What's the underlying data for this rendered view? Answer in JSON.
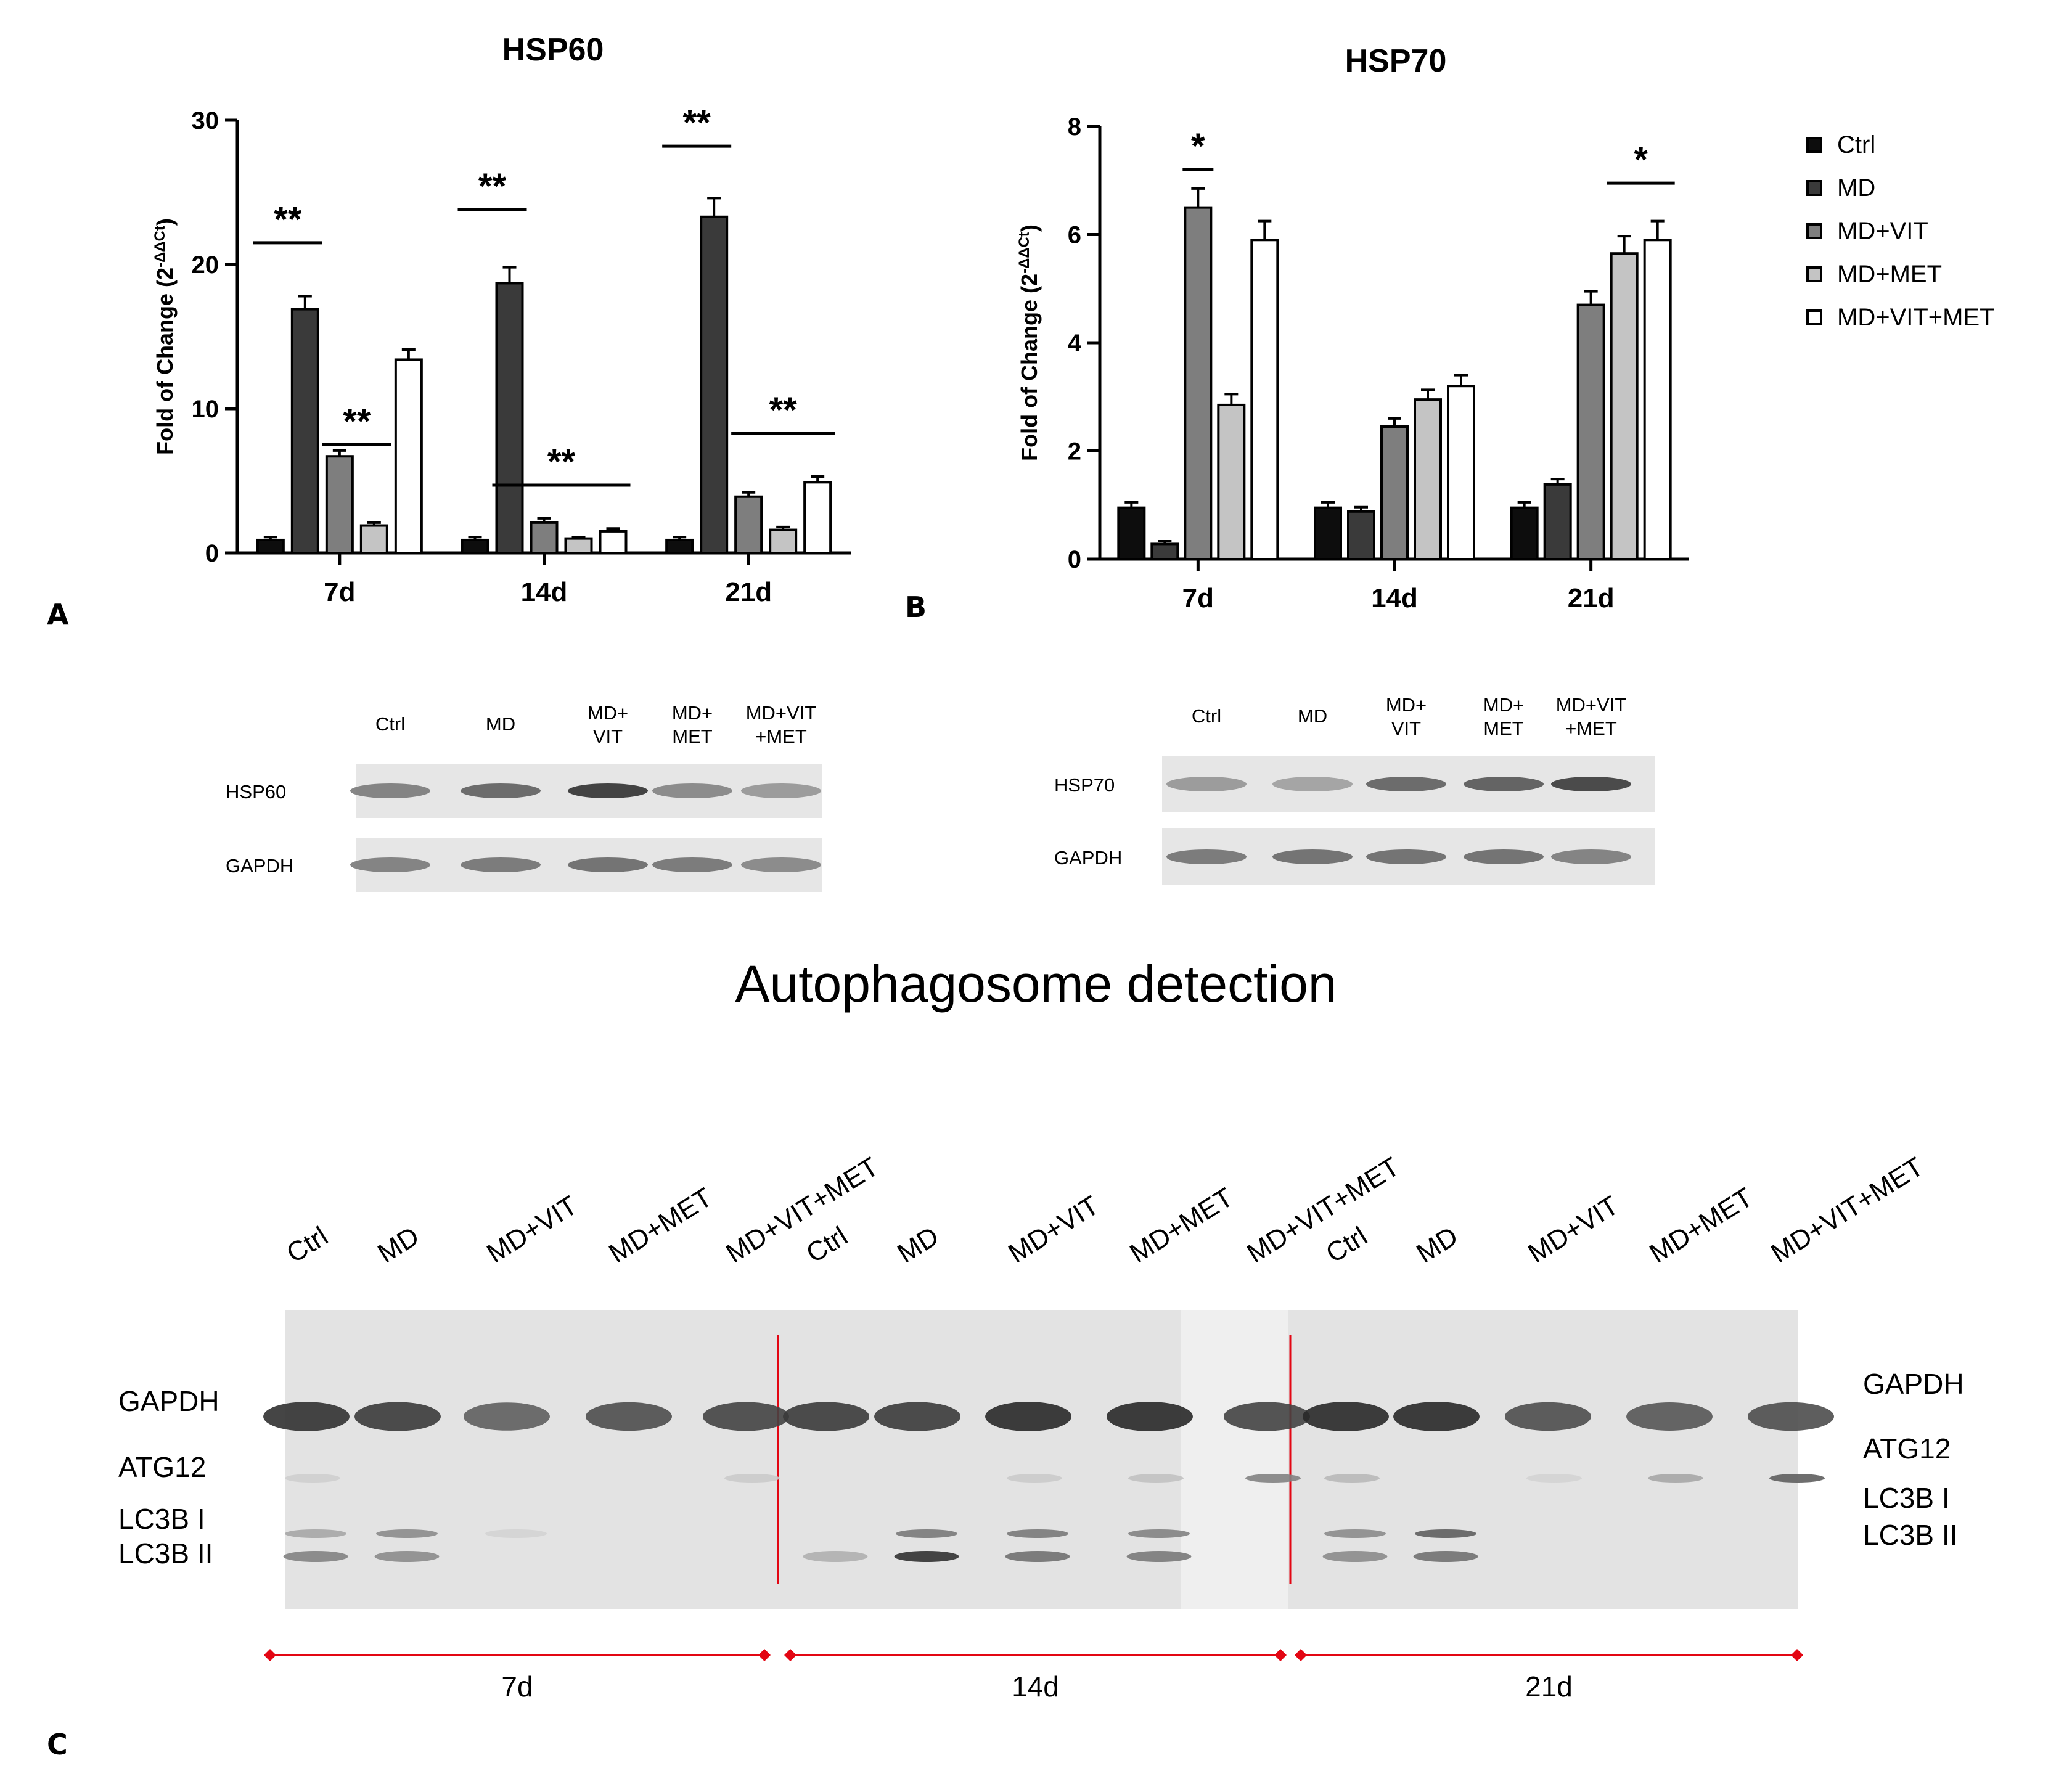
{
  "panels": {
    "a": "A",
    "b": "B",
    "c": "C"
  },
  "colors": {
    "Ctrl": "#0d0d0d",
    "MD": "#3a3a3a",
    "MD+VIT": "#7e7e7e",
    "MD+MET": "#c4c4c4",
    "MD+VIT+MET": "#ffffff",
    "marker": "#e30613"
  },
  "legend": {
    "items": [
      {
        "label": "Ctrl",
        "color": "#0d0d0d"
      },
      {
        "label": "MD",
        "color": "#3a3a3a"
      },
      {
        "label": "MD+VIT",
        "color": "#7e7e7e"
      },
      {
        "label": "MD+MET",
        "color": "#c4c4c4"
      },
      {
        "label": "MD+VIT+MET",
        "color": "#ffffff"
      }
    ]
  },
  "chart_data": [
    {
      "type": "bar",
      "title": "HSP60",
      "ylabel": "Fold of Change (2-ΔΔCt)",
      "ylabel_main": "Fold of Change (2",
      "ylabel_sup": "-ΔΔCt",
      "ylabel_end": ")",
      "ylim": [
        0,
        30
      ],
      "yticks": [
        0,
        10,
        20,
        30
      ],
      "categories": [
        "7d",
        "14d",
        "21d"
      ],
      "series": [
        {
          "name": "Ctrl",
          "values": [
            0.9,
            0.9,
            0.9
          ],
          "errors": [
            0.2,
            0.2,
            0.2
          ]
        },
        {
          "name": "MD",
          "values": [
            16.9,
            18.7,
            23.3
          ],
          "errors": [
            0.9,
            1.1,
            1.3
          ]
        },
        {
          "name": "MD+VIT",
          "values": [
            6.7,
            2.1,
            3.9
          ],
          "errors": [
            0.4,
            0.3,
            0.3
          ]
        },
        {
          "name": "MD+MET",
          "values": [
            1.9,
            1.0,
            1.6
          ],
          "errors": [
            0.2,
            0.1,
            0.2
          ]
        },
        {
          "name": "MD+VIT+MET",
          "values": [
            13.4,
            1.5,
            4.9
          ],
          "errors": [
            0.7,
            0.2,
            0.4
          ]
        }
      ],
      "significance": [
        {
          "label": "**",
          "category": 0,
          "from": 0,
          "to": 1,
          "y": 21.5
        },
        {
          "label": "**",
          "category": 0,
          "from": 2,
          "to": 3,
          "y": 7.5
        },
        {
          "label": "**",
          "category": 1,
          "from": 0,
          "to": 1,
          "y": 23.8
        },
        {
          "label": "**",
          "category": 1,
          "from": 1,
          "to": 4,
          "y": 4.7
        },
        {
          "label": "**",
          "category": 2,
          "from": 0,
          "to": 1,
          "y": 28.2
        },
        {
          "label": "**",
          "category": 2,
          "from": 2,
          "to": 4,
          "y": 8.3
        }
      ]
    },
    {
      "type": "bar",
      "title": "HSP70",
      "ylabel": "Fold of Change (2-ΔΔCt)",
      "ylabel_main": "Fold of Change (2",
      "ylabel_sup": "-ΔΔCt",
      "ylabel_end": ")",
      "ylim": [
        0,
        8
      ],
      "yticks": [
        0,
        2,
        4,
        6,
        8
      ],
      "categories": [
        "7d",
        "14d",
        "21d"
      ],
      "series": [
        {
          "name": "Ctrl",
          "values": [
            0.95,
            0.95,
            0.95
          ],
          "errors": [
            0.1,
            0.1,
            0.1
          ]
        },
        {
          "name": "MD",
          "values": [
            0.28,
            0.88,
            1.38
          ],
          "errors": [
            0.05,
            0.08,
            0.1
          ]
        },
        {
          "name": "MD+VIT",
          "values": [
            6.5,
            2.45,
            4.7
          ],
          "errors": [
            0.35,
            0.15,
            0.25
          ]
        },
        {
          "name": "MD+MET",
          "values": [
            2.85,
            2.95,
            5.65
          ],
          "errors": [
            0.2,
            0.18,
            0.32
          ]
        },
        {
          "name": "MD+VIT+MET",
          "values": [
            5.9,
            3.2,
            5.9
          ],
          "errors": [
            0.35,
            0.2,
            0.35
          ]
        }
      ],
      "significance": [
        {
          "label": "*",
          "category": 0,
          "from": 2,
          "to": 2,
          "y": 7.2
        },
        {
          "label": "*",
          "category": 2,
          "from": 3,
          "to": 4,
          "y": 6.95
        }
      ]
    }
  ],
  "blot_a": {
    "lanes": [
      [
        "Ctrl"
      ],
      [
        "MD"
      ],
      [
        "MD+",
        "VIT"
      ],
      [
        "MD+",
        "MET"
      ],
      [
        "MD+VIT",
        "+MET"
      ]
    ],
    "rows": [
      "HSP60",
      "GAPDH"
    ],
    "intensity": [
      [
        0.55,
        0.7,
        0.95,
        0.5,
        0.4
      ],
      [
        0.55,
        0.6,
        0.65,
        0.6,
        0.5
      ]
    ]
  },
  "blot_b": {
    "lanes": [
      [
        "Ctrl"
      ],
      [
        "MD"
      ],
      [
        "MD+",
        "VIT"
      ],
      [
        "MD+",
        "MET"
      ],
      [
        "MD+VIT",
        "+MET"
      ]
    ],
    "rows": [
      "HSP70",
      "GAPDH"
    ],
    "intensity": [
      [
        0.4,
        0.35,
        0.7,
        0.75,
        0.9
      ],
      [
        0.6,
        0.65,
        0.65,
        0.65,
        0.55
      ]
    ]
  },
  "autophagy": {
    "title": "Autophagosome detection",
    "lanes": [
      "Ctrl",
      "MD",
      "MD+VIT",
      "MD+MET",
      "MD+VIT+MET",
      "Ctrl",
      "MD",
      "MD+VIT",
      "MD+MET",
      "MD+VIT+MET",
      "Ctrl",
      "MD",
      "MD+VIT",
      "MD+MET",
      "MD+VIT+MET"
    ],
    "left_labels": [
      "GAPDH",
      "ATG12",
      "LC3B I",
      "LC3B II"
    ],
    "right_labels": [
      "GAPDH",
      "ATG12",
      "LC3B I",
      "LC3B II"
    ],
    "timepoints": [
      "7d",
      "14d",
      "21d"
    ],
    "gapdh": [
      0.95,
      0.9,
      0.7,
      0.8,
      0.85,
      0.9,
      0.9,
      1.0,
      1.0,
      0.85,
      1.0,
      1.0,
      0.8,
      0.75,
      0.8
    ],
    "atg12": [
      0.08,
      0.0,
      0.0,
      0.0,
      0.1,
      0.0,
      0.0,
      0.1,
      0.15,
      0.5,
      0.2,
      0.0,
      0.05,
      0.3,
      0.7
    ],
    "lc3b1": [
      0.3,
      0.45,
      0.05,
      0.0,
      0.0,
      0.0,
      0.55,
      0.55,
      0.5,
      0.0,
      0.45,
      0.7,
      0.0,
      0.0,
      0.0
    ],
    "lc3b2": [
      0.5,
      0.45,
      0.0,
      0.0,
      0.0,
      0.25,
      0.95,
      0.6,
      0.55,
      0.0,
      0.45,
      0.6,
      0.0,
      0.0,
      0.0
    ]
  }
}
